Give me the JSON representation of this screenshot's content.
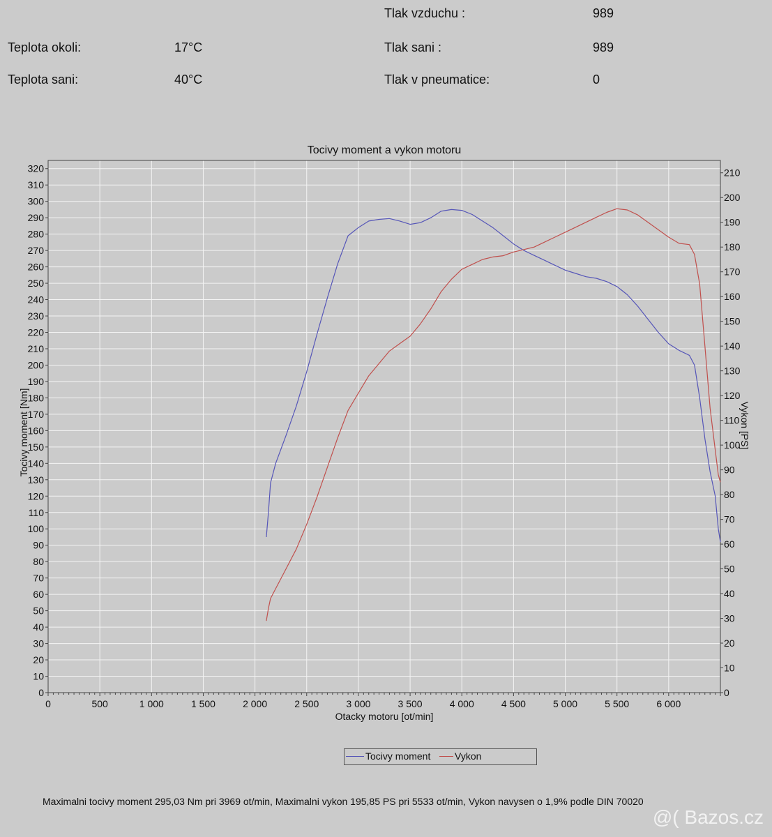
{
  "conditions": {
    "tlak_vzduchu_label": "Tlak vzduchu :",
    "tlak_vzduchu_value": "989",
    "teplota_okoli_label": "Teplota okoli:",
    "teplota_okoli_value": "17°C",
    "tlak_sani_label": "Tlak sani :",
    "tlak_sani_value": "989",
    "teplota_sani_label": "Teplota sani:",
    "teplota_sani_value": "40°C",
    "tlak_pneu_label": "Tlak v pneumatice:",
    "tlak_pneu_value": "0"
  },
  "chart_data": {
    "type": "line",
    "title": "Tocivy moment a vykon motoru",
    "xlabel": "Otacky motoru [ot/min]",
    "ylabel": "Tocivy moment [Nm]",
    "y2label": "Vykon [PS]",
    "xlim": [
      0,
      6500
    ],
    "ylim": [
      0,
      325
    ],
    "y2lim": [
      0,
      215
    ],
    "x_ticks": [
      0,
      500,
      1000,
      1500,
      2000,
      2500,
      3000,
      3500,
      4000,
      4500,
      5000,
      5500,
      6000
    ],
    "x_tick_labels": [
      "0",
      "500",
      "1 000",
      "1 500",
      "2 000",
      "2 500",
      "3 000",
      "3 500",
      "4 000",
      "4 500",
      "5 000",
      "5 500",
      "6 000"
    ],
    "y_ticks": [
      0,
      10,
      20,
      30,
      40,
      50,
      60,
      70,
      80,
      90,
      100,
      110,
      120,
      130,
      140,
      150,
      160,
      170,
      180,
      190,
      200,
      210,
      220,
      230,
      240,
      250,
      260,
      270,
      280,
      290,
      300,
      310,
      320
    ],
    "y2_ticks": [
      0,
      10,
      20,
      30,
      40,
      50,
      60,
      70,
      80,
      90,
      100,
      110,
      120,
      130,
      140,
      150,
      160,
      170,
      180,
      190,
      200,
      210
    ],
    "grid": true,
    "legend": "bottom-center",
    "series": [
      {
        "name": "Tocivy moment",
        "axis": "left",
        "color": "#5656b8",
        "x": [
          2110,
          2130,
          2150,
          2200,
          2300,
          2400,
          2500,
          2600,
          2700,
          2800,
          2900,
          3000,
          3100,
          3200,
          3300,
          3400,
          3500,
          3600,
          3700,
          3800,
          3900,
          4000,
          4100,
          4200,
          4300,
          4400,
          4500,
          4600,
          4700,
          4800,
          4900,
          5000,
          5100,
          5200,
          5300,
          5400,
          5500,
          5600,
          5700,
          5800,
          5900,
          6000,
          6100,
          6200,
          6250,
          6300,
          6350,
          6400,
          6450,
          6480,
          6500
        ],
        "y": [
          95,
          110,
          128,
          140,
          157,
          175,
          196,
          219,
          241,
          262,
          279,
          284,
          288,
          289,
          289.5,
          288,
          286,
          287,
          290,
          294,
          295,
          294.5,
          292,
          288,
          284,
          279,
          274,
          270,
          267,
          264,
          261,
          258,
          256,
          254,
          253,
          251,
          248,
          243,
          236,
          228,
          220,
          213,
          209,
          206,
          200,
          180,
          155,
          135,
          120,
          100,
          92
        ]
      },
      {
        "name": "Vykon",
        "axis": "right",
        "color": "#c0504d",
        "x": [
          2110,
          2130,
          2150,
          2200,
          2300,
          2400,
          2500,
          2600,
          2700,
          2800,
          2900,
          3000,
          3100,
          3200,
          3300,
          3400,
          3500,
          3600,
          3700,
          3800,
          3900,
          4000,
          4100,
          4200,
          4300,
          4400,
          4500,
          4600,
          4700,
          4800,
          4900,
          5000,
          5100,
          5200,
          5300,
          5400,
          5500,
          5600,
          5700,
          5800,
          5900,
          6000,
          6100,
          6200,
          6250,
          6300,
          6350,
          6400,
          6450,
          6480,
          6500
        ],
        "y": [
          29,
          34,
          38,
          42,
          50,
          58,
          68,
          79,
          91,
          103,
          114,
          121,
          128,
          133,
          138,
          141,
          144,
          149,
          155,
          162,
          167,
          171,
          173,
          175,
          176,
          176.5,
          178,
          179,
          180,
          182,
          184,
          186,
          188,
          190,
          192,
          194,
          195.5,
          195,
          193,
          190,
          187,
          184,
          181.5,
          181,
          177,
          165,
          140,
          115,
          98,
          88,
          85
        ]
      }
    ]
  },
  "footer": "Maximalni tocivy moment 295,03 Nm pri 3969 ot/min,  Maximalni vykon 195,85 PS pri 5533 ot/min,  Vykon navysen o 1,9% podle DIN 70020",
  "watermark": "@( Bazos.cz"
}
